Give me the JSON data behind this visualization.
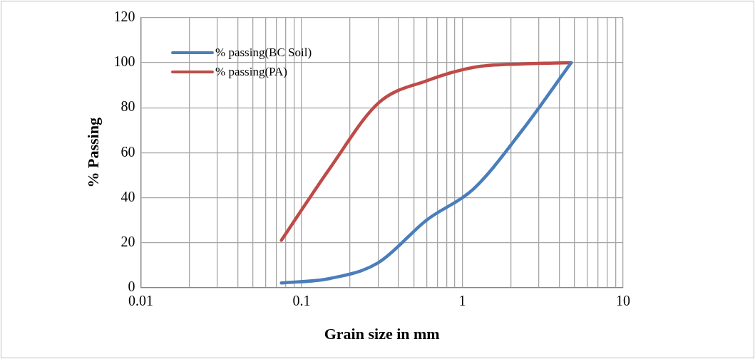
{
  "chart_data": {
    "type": "line",
    "xlabel": "Grain size in mm",
    "ylabel": "% Passing",
    "x": [
      0.075,
      0.15,
      0.3,
      0.6,
      1.18,
      2.36,
      4.75
    ],
    "series": [
      {
        "name": "% passing(BC Soil)",
        "color": "#4a7ebb",
        "values": [
          2,
          4,
          11,
          30,
          44,
          70,
          100
        ]
      },
      {
        "name": "% passing(PA)",
        "color": "#be4b48",
        "values": [
          21,
          53,
          82,
          92,
          98,
          99.5,
          100
        ]
      }
    ],
    "log": "x",
    "xlim": [
      0.01,
      10
    ],
    "xticks": [
      0.01,
      {
        "value": 0.02,
        "label": null
      },
      {
        "value": 0.03,
        "label": null
      },
      {
        "value": 0.04,
        "label": null
      },
      {
        "value": 0.05,
        "label": null
      },
      {
        "value": 0.06,
        "label": null
      },
      {
        "value": 0.07,
        "label": null
      },
      {
        "value": 0.08,
        "label": null
      },
      {
        "value": 0.09,
        "label": null
      },
      0.1,
      {
        "value": 0.2,
        "label": null
      },
      {
        "value": 0.3,
        "label": null
      },
      {
        "value": 0.4,
        "label": null
      },
      {
        "value": 0.5,
        "label": null
      },
      {
        "value": 0.6,
        "label": null
      },
      {
        "value": 0.7,
        "label": null
      },
      {
        "value": 0.8,
        "label": null
      },
      {
        "value": 0.9,
        "label": null
      },
      1,
      {
        "value": 2,
        "label": null
      },
      {
        "value": 3,
        "label": null
      },
      {
        "value": 4,
        "label": null
      },
      {
        "value": 5,
        "label": null
      },
      {
        "value": 6,
        "label": null
      },
      {
        "value": 7,
        "label": null
      },
      {
        "value": 8,
        "label": null
      },
      {
        "value": 9,
        "label": null
      },
      10
    ],
    "ylim": [
      0,
      120
    ],
    "yticks": [
      0,
      20,
      40,
      60,
      80,
      100,
      120
    ],
    "grid": true,
    "legend": "top left",
    "marker": "none",
    "line_style": "solid"
  }
}
